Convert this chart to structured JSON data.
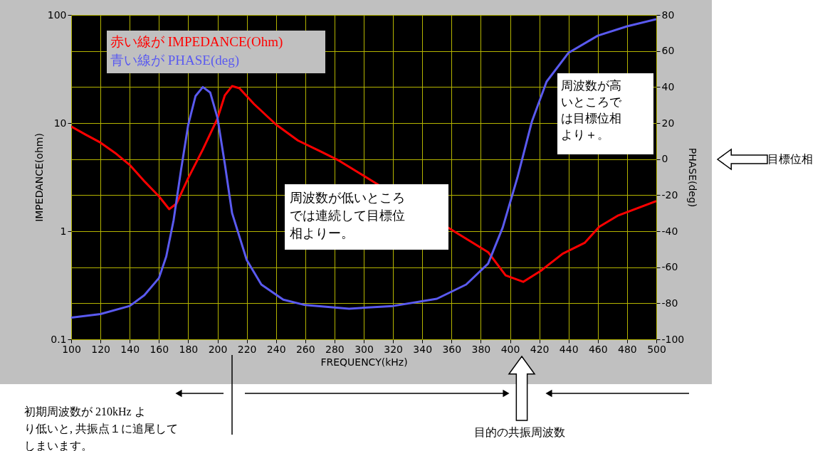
{
  "chart_data": {
    "type": "line",
    "xlabel": "FREQUENCY(kHz)",
    "ylabel": "IMPEDANCE(ohm)",
    "y2label": "PHASE(deg)",
    "xlim": [
      100,
      500
    ],
    "xticks": [
      100,
      120,
      140,
      160,
      180,
      200,
      220,
      240,
      260,
      280,
      300,
      320,
      340,
      360,
      380,
      400,
      420,
      440,
      460,
      480,
      500
    ],
    "ylim": [
      0.1,
      100
    ],
    "yticks": [
      0.1,
      1,
      10,
      100
    ],
    "log": "y",
    "y2lim": [
      -100,
      80
    ],
    "y2ticks": [
      -100,
      -80,
      -60,
      -40,
      -20,
      0,
      20,
      40,
      60,
      80
    ],
    "grid": true,
    "legend": "top left",
    "series": [
      {
        "name": "赤い線が IMPEDANCE(Ohm)",
        "color": "#ff0000",
        "x": [
          100,
          110,
          120,
          130,
          140,
          150,
          160,
          167,
          172,
          180,
          190,
          200,
          205,
          210,
          215,
          225,
          240,
          255,
          270,
          283,
          385,
          397,
          409,
          421,
          436,
          451,
          461,
          474,
          500
        ],
        "values": [
          9.3,
          7.8,
          6.6,
          5.3,
          4.1,
          2.9,
          2.1,
          1.6,
          1.8,
          3.1,
          5.7,
          11,
          18,
          22,
          21,
          15,
          9.7,
          6.9,
          5.5,
          4.5,
          0.64,
          0.39,
          0.34,
          0.43,
          0.62,
          0.78,
          1.1,
          1.4,
          1.9
        ]
      },
      {
        "name": "青い線が PHASE(deg)",
        "color": "#5a5af0",
        "axis": "y2",
        "x": [
          100,
          120,
          140,
          150,
          160,
          165,
          170,
          175,
          180,
          185,
          190,
          195,
          200,
          205,
          210,
          220,
          230,
          245,
          260,
          280,
          290,
          320,
          350,
          370,
          385,
          395,
          405,
          415,
          425,
          440,
          460,
          480,
          500
        ],
        "values": [
          -88,
          -86,
          -81.5,
          -75.5,
          -66,
          -54,
          -34,
          -6.5,
          19,
          35,
          40,
          37,
          23,
          -2.5,
          -30,
          -56,
          -69.6,
          -78,
          -81,
          -82.3,
          -83,
          -81.5,
          -77.5,
          -69.6,
          -58,
          -38,
          -10.4,
          21,
          43,
          59,
          68.5,
          73.7,
          77.6
        ]
      }
    ],
    "annotations": [
      "周波数が低いところでは連続して目標位相よりー。",
      "周波数が高いところでは目標位相より＋。",
      "目標位相",
      "初期周波数が 210kHz より低いと, 共振点１に追尾してしまいます。",
      "目的の共振周波数"
    ]
  }
}
